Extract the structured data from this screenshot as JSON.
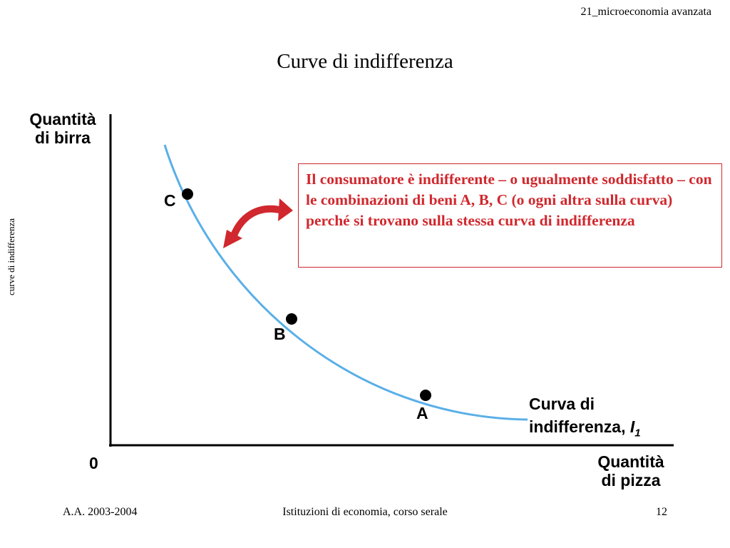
{
  "header": {
    "course": "21_microeconomia avanzata"
  },
  "title": "Curve di indifferenza",
  "side_label": "curve di indifferenza",
  "diagram": {
    "y_axis_label": [
      "Quantità",
      "di birra"
    ],
    "x_axis_label": [
      "Quantità",
      "di pizza"
    ],
    "origin_label": "0",
    "points": [
      {
        "label": "C"
      },
      {
        "label": "B"
      },
      {
        "label": "A"
      }
    ],
    "curve_label": {
      "line1": "Curva di",
      "line2": "indifferenza,",
      "symbol": "I",
      "subscript": "1"
    },
    "colors": {
      "curve": "#5aafe8",
      "arrow": "#d0282e",
      "note_text": "#d0282e",
      "axis": "#000000"
    }
  },
  "note": "Il consumatore è indifferente – o ugualmente soddisfatto – con le combinazioni di beni A, B, C (o ogni altra sulla curva) perché si trovano sulla stessa curva di indifferenza",
  "footer": {
    "left": "A.A. 2003-2004",
    "center": "Istituzioni di economia, corso serale",
    "page": "12"
  }
}
